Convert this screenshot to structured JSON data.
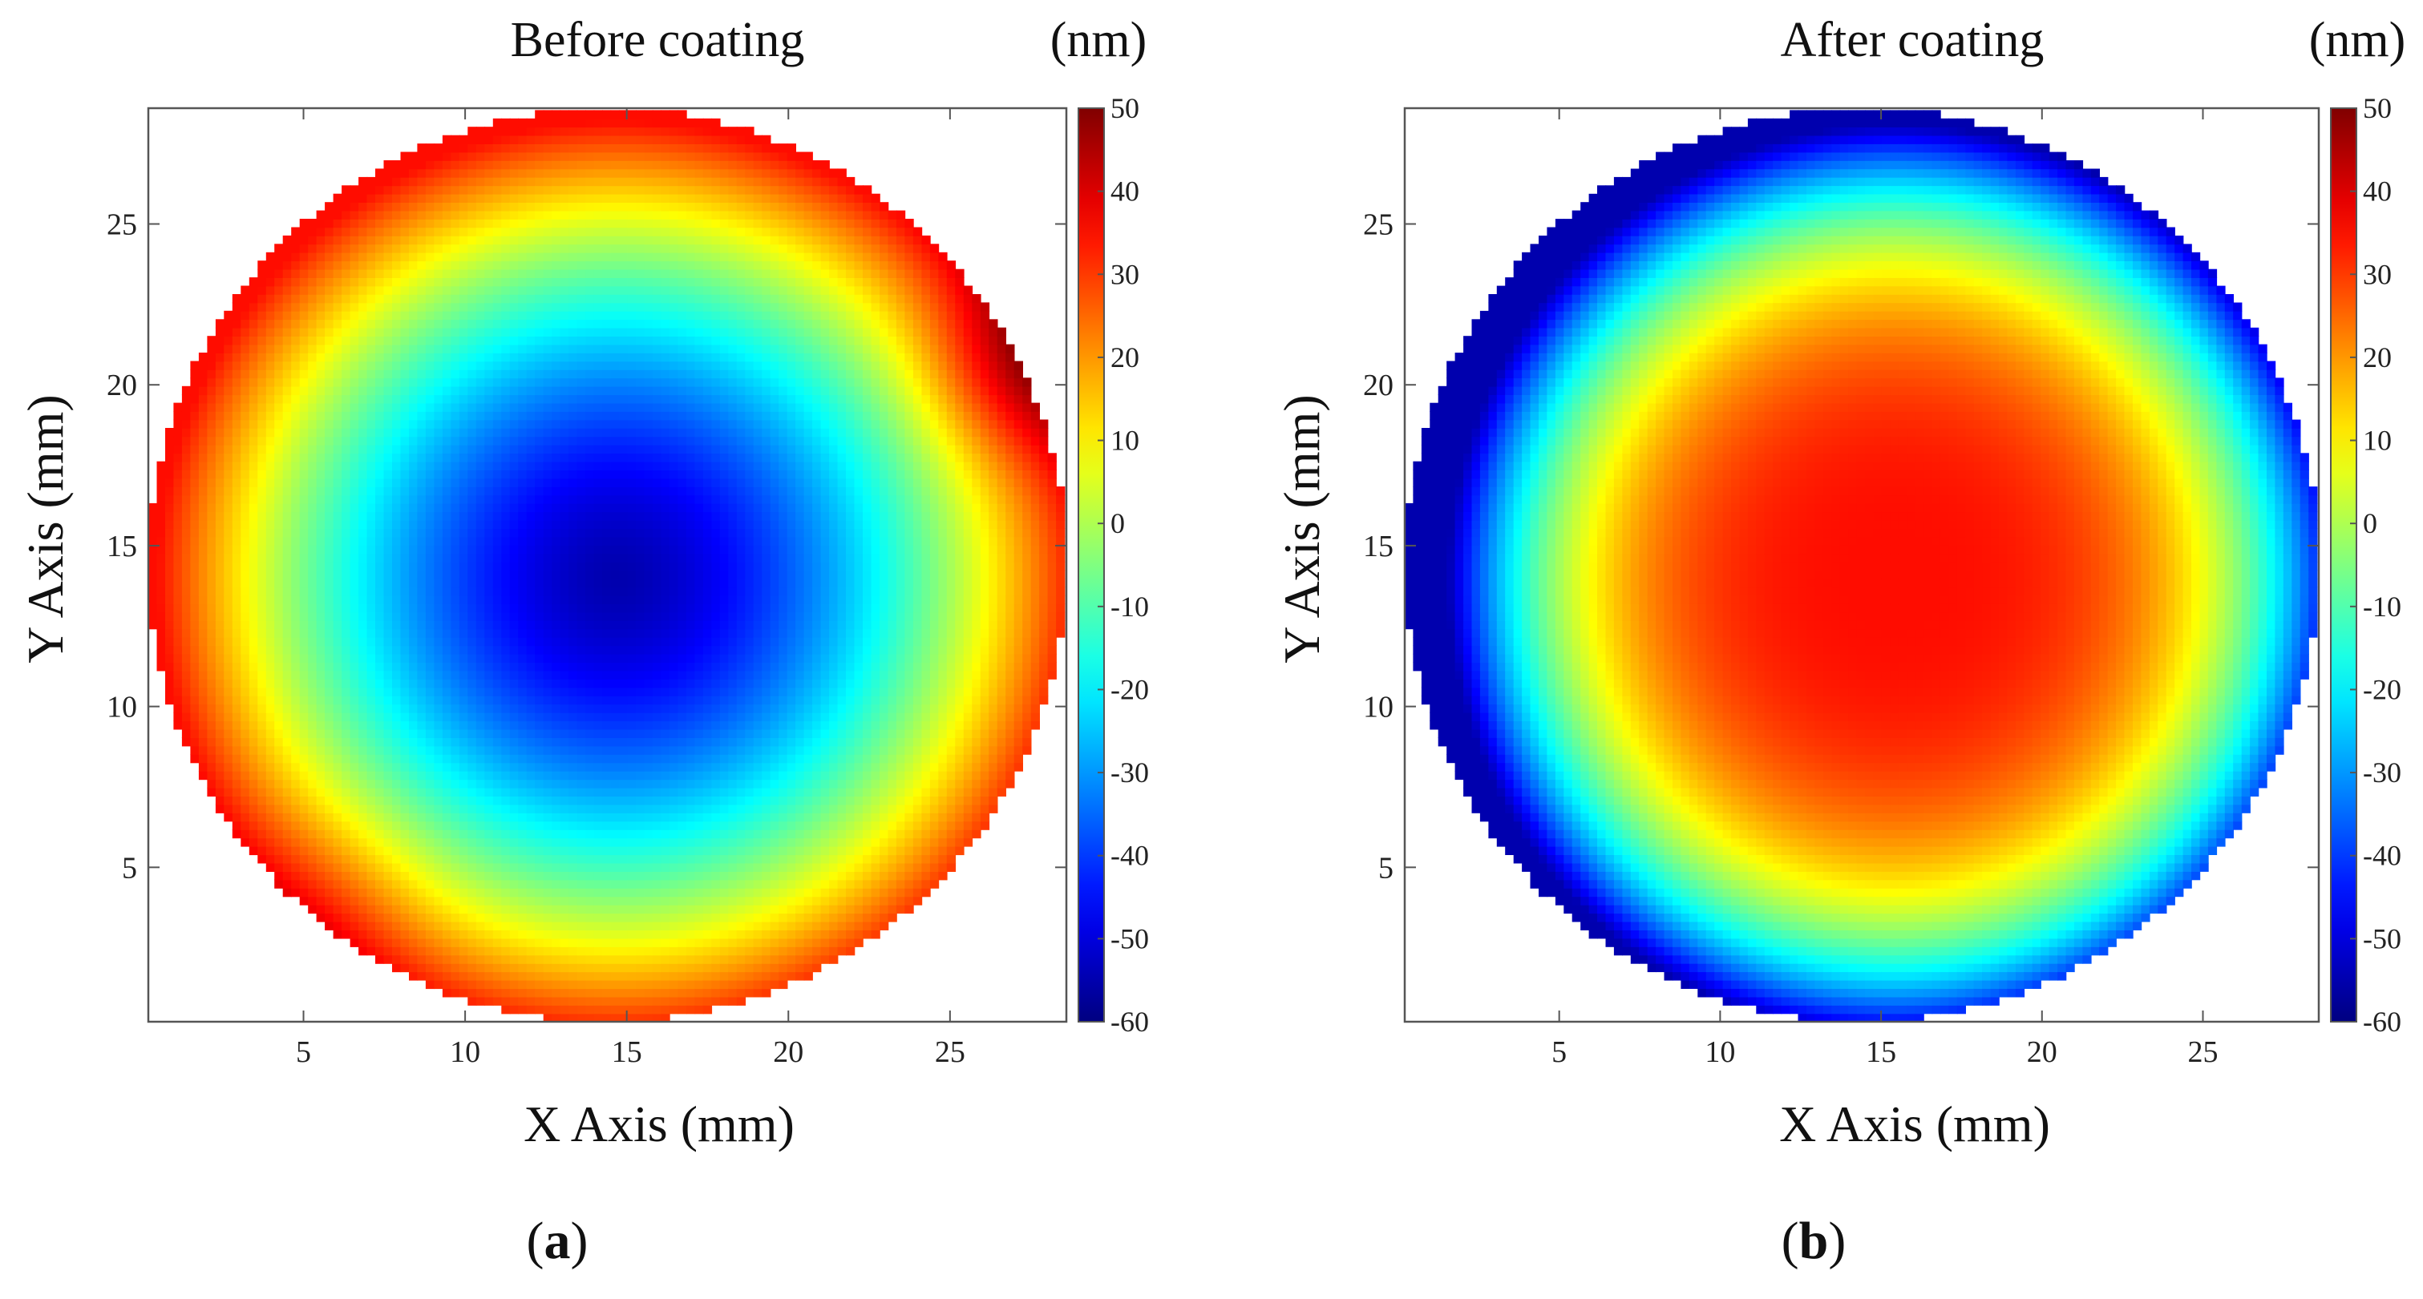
{
  "chart_data": [
    {
      "type": "heatmap",
      "panel_label": "a",
      "title": "Before coating",
      "unit": "(nm)",
      "xlabel": "X Axis (mm)",
      "ylabel": "Y Axis (mm)",
      "xlim": [
        0.2,
        28.6
      ],
      "ylim": [
        0.2,
        28.6
      ],
      "x_ticks": [
        "5",
        "10",
        "15",
        "20",
        "25"
      ],
      "y_ticks": [
        "5",
        "10",
        "15",
        "20",
        "25"
      ],
      "colorbar": {
        "min": -60,
        "max": 50,
        "ticks": [
          "50",
          "40",
          "30",
          "20",
          "10",
          "0",
          "-10",
          "-20",
          "-30",
          "-40",
          "-50",
          "-60"
        ]
      },
      "surface": {
        "shape": "circular aperture",
        "center_mm": [
          14.4,
          14.4
        ],
        "radius_mm": 14.2,
        "center_value_nm": -55,
        "edge_value_nm": 35,
        "max_value_nm": 50,
        "min_value_nm": -58
      }
    },
    {
      "type": "heatmap",
      "panel_label": "b",
      "title": "After coating",
      "unit": "(nm)",
      "xlabel": "X Axis (mm)",
      "ylabel": "Y Axis (mm)",
      "xlim": [
        0.2,
        28.6
      ],
      "ylim": [
        0.2,
        28.6
      ],
      "x_ticks": [
        "5",
        "10",
        "15",
        "20",
        "25"
      ],
      "y_ticks": [
        "5",
        "10",
        "15",
        "20",
        "25"
      ],
      "colorbar": {
        "min": -60,
        "max": 50,
        "ticks": [
          "50",
          "40",
          "30",
          "20",
          "10",
          "0",
          "-10",
          "-20",
          "-30",
          "-40",
          "-50",
          "-60"
        ]
      },
      "surface": {
        "shape": "circular aperture",
        "center_mm": [
          14.4,
          14.4
        ],
        "radius_mm": 14.2,
        "center_value_nm": 35,
        "edge_value_nm": -55,
        "max_value_nm": 38,
        "min_value_nm": -60
      }
    }
  ]
}
